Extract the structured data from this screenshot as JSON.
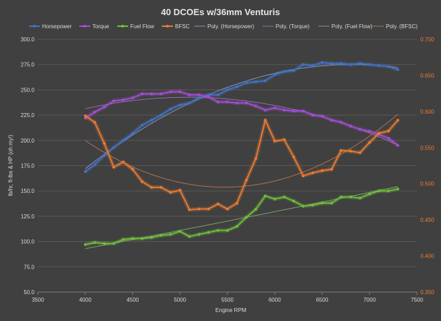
{
  "chart_data": {
    "type": "line",
    "title": "40 DCOEs w/36mm Venturis",
    "xlabel": "Engine RPM",
    "ylabel": "lb/hr,  ft-lbs  &  HP  (oh my!)",
    "xlim": [
      3500,
      7500
    ],
    "x_ticks": [
      3500,
      4000,
      4500,
      5000,
      5500,
      6000,
      6500,
      7000,
      7500
    ],
    "ylim": [
      50,
      300
    ],
    "y_ticks": [
      50.0,
      75.0,
      100.0,
      125.0,
      150.0,
      175.0,
      200.0,
      225.0,
      250.0,
      275.0,
      300.0
    ],
    "y2lim": [
      0.35,
      0.7
    ],
    "y2_ticks": [
      0.35,
      0.4,
      0.45,
      0.5,
      0.55,
      0.6,
      0.65,
      0.7
    ],
    "y_tick_labels": [
      "50.0",
      "75.0",
      "100.0",
      "125.0",
      "150.0",
      "175.0",
      "200.0",
      "225.0",
      "250.0",
      "275.0",
      "300.0"
    ],
    "y2_tick_labels": [
      "0.350",
      "0.400",
      "0.450",
      "0.500",
      "0.550",
      "0.600",
      "0.650",
      "0.700"
    ],
    "x": [
      4000,
      4100,
      4200,
      4300,
      4400,
      4500,
      4600,
      4700,
      4800,
      4900,
      5000,
      5100,
      5200,
      5300,
      5400,
      5500,
      5600,
      5700,
      5800,
      5900,
      6000,
      6100,
      6200,
      6300,
      6400,
      6500,
      6600,
      6700,
      6800,
      6900,
      7000,
      7100,
      7200,
      7300
    ],
    "series": [
      {
        "name": "Horsepower",
        "axis": "left",
        "color": "#4472c4",
        "values": [
          169,
          176,
          185,
          193,
          200,
          207,
          215,
          220,
          225,
          231,
          235,
          237,
          242,
          245,
          245,
          250,
          253,
          257,
          258,
          259,
          265,
          268,
          269,
          275,
          274,
          277,
          276,
          276,
          275,
          276,
          275,
          274,
          273,
          270
        ]
      },
      {
        "name": "Torque",
        "axis": "left",
        "color": "#a64ed6",
        "values": [
          222,
          228,
          233,
          239,
          240,
          242,
          246,
          246,
          246,
          248,
          248,
          245,
          245,
          243,
          238,
          238,
          237,
          237,
          234,
          230,
          232,
          230,
          229,
          229,
          225,
          224,
          220,
          218,
          214,
          211,
          209,
          206,
          202,
          195
        ]
      },
      {
        "name": "Fuel Flow",
        "axis": "left",
        "color": "#70c03c",
        "values": [
          97,
          99,
          98,
          98,
          102,
          103,
          103,
          104,
          106,
          107,
          110,
          105,
          107,
          109,
          111,
          111,
          115,
          124,
          132,
          145,
          142,
          144,
          140,
          135,
          136,
          138,
          138,
          144,
          144,
          143,
          147,
          150,
          150,
          152
        ]
      },
      {
        "name": "BFSC",
        "axis": "right",
        "color": "#ed7d31",
        "values": [
          0.594,
          0.585,
          0.556,
          0.523,
          0.53,
          0.52,
          0.503,
          0.495,
          0.495,
          0.488,
          0.491,
          0.464,
          0.465,
          0.465,
          0.472,
          0.465,
          0.473,
          0.505,
          0.535,
          0.588,
          0.559,
          0.561,
          0.537,
          0.511,
          0.515,
          0.518,
          0.52,
          0.546,
          0.545,
          0.543,
          0.557,
          0.57,
          0.573,
          0.588
        ]
      }
    ],
    "trendlines": [
      {
        "name": "Poly. (Horsepower)",
        "of": "Horsepower",
        "axis": "left",
        "color": "#7f97c4",
        "order": 2
      },
      {
        "name": "Poly. (Torque)",
        "of": "Torque",
        "axis": "left",
        "color": "#8c6fb0",
        "order": 2
      },
      {
        "name": "Poly. (Fuel Flow)",
        "of": "Fuel Flow",
        "axis": "left",
        "color": "#7e9f68",
        "order": 2
      },
      {
        "name": "Poly. (BFSC)",
        "of": "BFSC",
        "axis": "right",
        "color": "#b27350",
        "order": 2
      }
    ],
    "legend_position": "top",
    "grid": true
  }
}
